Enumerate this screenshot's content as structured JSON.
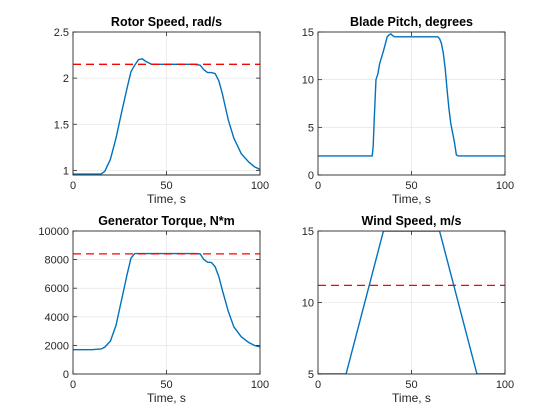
{
  "chart_data": [
    {
      "type": "line",
      "title": "Rotor Speed, rad/s",
      "xlabel": "Time, s",
      "ylabel": "",
      "xlim": [
        0,
        100
      ],
      "ylim": [
        0.95,
        2.5
      ],
      "xticks": [
        0,
        50,
        100
      ],
      "yticks": [
        1,
        1.5,
        2,
        2.5
      ],
      "grid": true,
      "series": [
        {
          "color": "#0072bd",
          "x": [
            0,
            5,
            10,
            15,
            17,
            20,
            23,
            26,
            29,
            31,
            33,
            35,
            37,
            39,
            42,
            45,
            50,
            55,
            60,
            65,
            68,
            70,
            72,
            74,
            76,
            78,
            80,
            83,
            86,
            90,
            94,
            97,
            100
          ],
          "y": [
            0.96,
            0.96,
            0.96,
            0.96,
            0.99,
            1.12,
            1.35,
            1.63,
            1.9,
            2.07,
            2.14,
            2.2,
            2.21,
            2.18,
            2.15,
            2.15,
            2.15,
            2.15,
            2.15,
            2.15,
            2.14,
            2.09,
            2.06,
            2.06,
            2.05,
            1.97,
            1.82,
            1.55,
            1.35,
            1.18,
            1.09,
            1.04,
            1.01
          ]
        },
        {
          "color": "#ff0000",
          "style": "dashed",
          "x": [
            0,
            100
          ],
          "y": [
            2.15,
            2.15
          ]
        }
      ]
    },
    {
      "type": "line",
      "title": "Blade Pitch, degrees",
      "xlabel": "Time, s",
      "ylabel": "",
      "xlim": [
        0,
        100
      ],
      "ylim": [
        0,
        15
      ],
      "xticks": [
        0,
        50,
        100
      ],
      "yticks": [
        0,
        5,
        10,
        15
      ],
      "grid": true,
      "series": [
        {
          "color": "#0072bd",
          "x": [
            0,
            10,
            20,
            29,
            29.5,
            30,
            31,
            32,
            33,
            35,
            37,
            38,
            39,
            40,
            41,
            42,
            44,
            46,
            50,
            55,
            60,
            64,
            65,
            66,
            67,
            68,
            69,
            70,
            71,
            72,
            73,
            74,
            75,
            85,
            100
          ],
          "y": [
            2,
            2,
            2,
            2,
            3,
            5.5,
            10,
            10.6,
            11.7,
            13,
            14.5,
            14.7,
            14.8,
            14.6,
            14.5,
            14.5,
            14.5,
            14.5,
            14.5,
            14.5,
            14.5,
            14.5,
            14.3,
            13.8,
            12.8,
            11.2,
            9,
            7,
            5.4,
            4.4,
            3.4,
            2.1,
            2,
            2,
            2
          ]
        }
      ]
    },
    {
      "type": "line",
      "title": "Generator Torque, N*m",
      "xlabel": "Time, s",
      "ylabel": "",
      "xlim": [
        0,
        100
      ],
      "ylim": [
        0,
        10000
      ],
      "xticks": [
        0,
        50,
        100
      ],
      "yticks": [
        0,
        2000,
        4000,
        6000,
        8000,
        10000
      ],
      "grid": true,
      "series": [
        {
          "color": "#0072bd",
          "x": [
            0,
            10,
            15,
            17,
            20,
            23,
            26,
            29,
            31,
            33,
            35,
            40,
            45,
            50,
            55,
            60,
            65,
            68,
            70,
            72,
            74,
            76,
            78,
            80,
            83,
            86,
            90,
            94,
            97,
            100
          ],
          "y": [
            1700,
            1700,
            1750,
            1880,
            2300,
            3400,
            5200,
            7000,
            8100,
            8420,
            8420,
            8420,
            8420,
            8420,
            8420,
            8420,
            8420,
            8400,
            8000,
            7820,
            7800,
            7500,
            6800,
            5800,
            4400,
            3300,
            2600,
            2200,
            2000,
            1900
          ]
        },
        {
          "color": "#ff0000",
          "style": "dashed",
          "x": [
            0,
            100
          ],
          "y": [
            8400,
            8400
          ]
        }
      ]
    },
    {
      "type": "line",
      "title": "Wind Speed, m/s",
      "xlabel": "Time, s",
      "ylabel": "",
      "xlim": [
        0,
        100
      ],
      "ylim": [
        5,
        15
      ],
      "xticks": [
        0,
        50,
        100
      ],
      "yticks": [
        5,
        10,
        15
      ],
      "grid": true,
      "series": [
        {
          "color": "#0072bd",
          "x": [
            0,
            15,
            35,
            65,
            85,
            100
          ],
          "y": [
            5,
            5,
            15,
            15,
            5,
            5
          ]
        },
        {
          "color": "#ff0000",
          "style": "dashed",
          "x": [
            0,
            100
          ],
          "y": [
            11.2,
            11.2
          ]
        }
      ]
    }
  ]
}
